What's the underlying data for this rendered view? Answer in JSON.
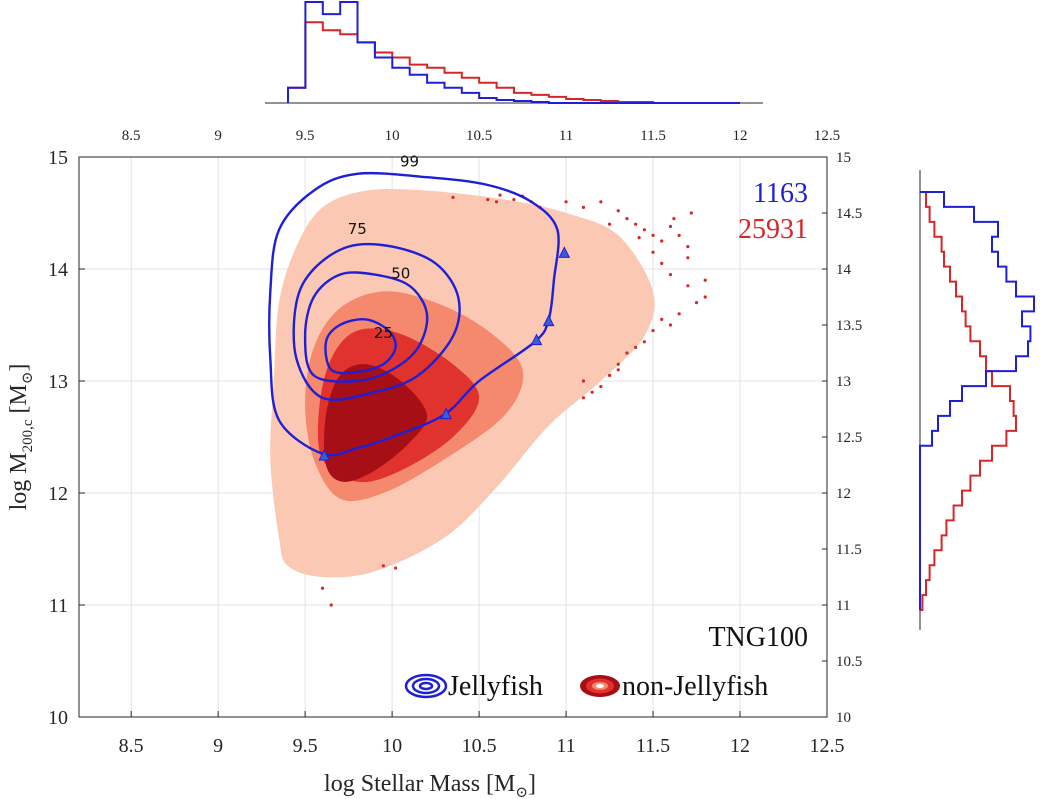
{
  "chart_data": {
    "type": "contour-scatter",
    "xlabel": "log Stellar Mass [M",
    "xlabel_sub": "⊙",
    "xlabel_end": "]",
    "ylabel": "log M",
    "ylabel_sub": "200,c",
    "ylabel_end": " [M",
    "ylabel_sub2": "⊙",
    "ylabel_end2": "]",
    "xlim": [
      8.2,
      12.5
    ],
    "ylim": [
      10,
      15
    ],
    "xticks": [
      "8.5",
      "9",
      "9.5",
      "10",
      "10.5",
      "11",
      "11.5",
      "12",
      "12.5"
    ],
    "yticks": [
      "10",
      "11",
      "12",
      "13",
      "14",
      "15"
    ],
    "right_yticks": [
      "10",
      "10.5",
      "11",
      "11.5",
      "12",
      "12.5",
      "13",
      "13.5",
      "14",
      "14.5",
      "15"
    ],
    "grid": true,
    "series": [
      {
        "name": "Jellyfish",
        "count": "1163",
        "color": "#1f1fd6",
        "contour_levels": [
          "25",
          "50",
          "75",
          "99"
        ],
        "contours": [
          {
            "level": "25",
            "points": [
              [
                9.65,
                13.1
              ],
              [
                9.62,
                13.35
              ],
              [
                9.7,
                13.5
              ],
              [
                9.85,
                13.55
              ],
              [
                9.98,
                13.45
              ],
              [
                10.02,
                13.3
              ],
              [
                9.95,
                13.15
              ],
              [
                9.8,
                13.08
              ],
              [
                9.65,
                13.1
              ]
            ],
            "label_at": [
              9.95,
              13.42
            ]
          },
          {
            "level": "50",
            "points": [
              [
                9.55,
                13.05
              ],
              [
                9.5,
                13.4
              ],
              [
                9.55,
                13.75
              ],
              [
                9.7,
                13.95
              ],
              [
                9.9,
                13.95
              ],
              [
                10.1,
                13.85
              ],
              [
                10.2,
                13.6
              ],
              [
                10.15,
                13.3
              ],
              [
                10.0,
                13.1
              ],
              [
                9.8,
                13.0
              ],
              [
                9.55,
                13.05
              ]
            ],
            "label_at": [
              10.05,
              13.95
            ]
          },
          {
            "level": "75",
            "points": [
              [
                9.6,
                12.85
              ],
              [
                9.45,
                13.2
              ],
              [
                9.45,
                13.7
              ],
              [
                9.55,
                14.0
              ],
              [
                9.75,
                14.2
              ],
              [
                10.0,
                14.2
              ],
              [
                10.25,
                14.05
              ],
              [
                10.38,
                13.75
              ],
              [
                10.35,
                13.4
              ],
              [
                10.15,
                13.05
              ],
              [
                9.9,
                12.9
              ],
              [
                9.6,
                12.85
              ]
            ],
            "label_at": [
              9.8,
              14.35
            ]
          },
          {
            "level": "99",
            "points": [
              [
                9.6,
                12.35
              ],
              [
                9.35,
                12.65
              ],
              [
                9.3,
                13.2
              ],
              [
                9.3,
                13.8
              ],
              [
                9.35,
                14.35
              ],
              [
                9.55,
                14.7
              ],
              [
                9.8,
                14.85
              ],
              [
                10.2,
                14.82
              ],
              [
                10.55,
                14.75
              ],
              [
                10.8,
                14.6
              ],
              [
                10.95,
                14.35
              ],
              [
                10.93,
                13.9
              ],
              [
                10.9,
                13.55
              ],
              [
                10.82,
                13.35
              ],
              [
                10.5,
                13.0
              ],
              [
                10.3,
                12.7
              ],
              [
                10.0,
                12.5
              ],
              [
                9.8,
                12.4
              ],
              [
                9.6,
                12.35
              ]
            ],
            "label_at": [
              10.1,
              14.95
            ]
          }
        ]
      },
      {
        "name": "non-Jellyfish",
        "count": "25931",
        "color": "#d62728",
        "fill_levels": [
          "99",
          "75",
          "50",
          "25"
        ],
        "fill_colors": [
          "#fbc8b4",
          "#f4896d",
          "#e0332d",
          "#a50f15"
        ],
        "regions": [
          {
            "level": "99",
            "points": [
              [
                9.35,
                11.6
              ],
              [
                9.3,
                12.3
              ],
              [
                9.32,
                13.0
              ],
              [
                9.35,
                13.7
              ],
              [
                9.45,
                14.2
              ],
              [
                9.6,
                14.55
              ],
              [
                9.85,
                14.7
              ],
              [
                10.2,
                14.7
              ],
              [
                10.65,
                14.62
              ],
              [
                11.0,
                14.5
              ],
              [
                11.3,
                14.3
              ],
              [
                11.5,
                13.8
              ],
              [
                11.45,
                13.4
              ],
              [
                11.2,
                13.0
              ],
              [
                10.9,
                12.6
              ],
              [
                10.6,
                12.05
              ],
              [
                10.3,
                11.6
              ],
              [
                9.9,
                11.3
              ],
              [
                9.6,
                11.25
              ],
              [
                9.4,
                11.35
              ],
              [
                9.35,
                11.6
              ]
            ]
          },
          {
            "level": "75",
            "points": [
              [
                9.55,
                12.3
              ],
              [
                9.5,
                12.8
              ],
              [
                9.55,
                13.3
              ],
              [
                9.7,
                13.65
              ],
              [
                9.95,
                13.8
              ],
              [
                10.25,
                13.7
              ],
              [
                10.55,
                13.45
              ],
              [
                10.75,
                13.1
              ],
              [
                10.65,
                12.7
              ],
              [
                10.3,
                12.3
              ],
              [
                9.95,
                12.0
              ],
              [
                9.7,
                11.95
              ],
              [
                9.55,
                12.3
              ]
            ]
          },
          {
            "level": "50",
            "points": [
              [
                9.6,
                12.3
              ],
              [
                9.58,
                12.75
              ],
              [
                9.65,
                13.2
              ],
              [
                9.8,
                13.45
              ],
              [
                10.05,
                13.42
              ],
              [
                10.35,
                13.15
              ],
              [
                10.5,
                12.85
              ],
              [
                10.35,
                12.5
              ],
              [
                10.05,
                12.2
              ],
              [
                9.8,
                12.1
              ],
              [
                9.6,
                12.3
              ]
            ]
          },
          {
            "level": "25",
            "points": [
              [
                9.62,
                12.25
              ],
              [
                9.62,
                12.7
              ],
              [
                9.7,
                13.05
              ],
              [
                9.85,
                13.15
              ],
              [
                10.05,
                13.0
              ],
              [
                10.2,
                12.7
              ],
              [
                10.1,
                12.45
              ],
              [
                9.9,
                12.2
              ],
              [
                9.72,
                12.1
              ],
              [
                9.62,
                12.25
              ]
            ]
          }
        ]
      }
    ],
    "jellyfish_markers": [
      [
        9.61,
        12.33
      ],
      [
        10.31,
        12.7
      ],
      [
        10.83,
        13.36
      ],
      [
        10.9,
        13.53
      ],
      [
        10.99,
        14.14
      ]
    ],
    "outlier_points": [
      [
        10.35,
        14.64
      ],
      [
        10.55,
        14.62
      ],
      [
        10.6,
        14.6
      ],
      [
        10.62,
        14.66
      ],
      [
        10.7,
        14.62
      ],
      [
        10.75,
        14.65
      ],
      [
        10.8,
        14.6
      ],
      [
        10.85,
        14.55
      ],
      [
        11.0,
        14.6
      ],
      [
        11.1,
        14.55
      ],
      [
        11.2,
        14.6
      ],
      [
        11.3,
        14.52
      ],
      [
        11.35,
        14.45
      ],
      [
        11.4,
        14.4
      ],
      [
        11.45,
        14.35
      ],
      [
        11.5,
        14.3
      ],
      [
        11.55,
        14.25
      ],
      [
        11.6,
        14.38
      ],
      [
        11.65,
        14.3
      ],
      [
        11.7,
        14.2
      ],
      [
        11.55,
        14.05
      ],
      [
        11.6,
        13.95
      ],
      [
        11.7,
        13.85
      ],
      [
        11.75,
        13.7
      ],
      [
        11.8,
        13.75
      ],
      [
        11.65,
        13.6
      ],
      [
        11.55,
        13.55
      ],
      [
        11.5,
        13.45
      ],
      [
        11.45,
        13.35
      ],
      [
        11.4,
        13.3
      ],
      [
        11.35,
        13.25
      ],
      [
        11.3,
        13.15
      ],
      [
        11.25,
        13.05
      ],
      [
        11.2,
        12.95
      ],
      [
        11.1,
        13.0
      ],
      [
        11.15,
        12.9
      ],
      [
        11.6,
        13.5
      ],
      [
        11.7,
        14.1
      ],
      [
        11.8,
        13.9
      ],
      [
        11.62,
        14.45
      ],
      [
        11.72,
        14.5
      ],
      [
        9.6,
        11.15
      ],
      [
        9.65,
        11.0
      ],
      [
        9.95,
        11.35
      ],
      [
        10.02,
        11.33
      ],
      [
        11.1,
        12.85
      ],
      [
        11.3,
        13.1
      ],
      [
        11.5,
        14.15
      ],
      [
        11.42,
        14.28
      ],
      [
        11.25,
        14.4
      ]
    ],
    "top_histogram": {
      "x_range": [
        9.4,
        12.0
      ],
      "bins_jellyfish": [
        0.15,
        1.0,
        0.88,
        1.0,
        0.6,
        0.45,
        0.35,
        0.28,
        0.2,
        0.15,
        0.1,
        0.05,
        0.03,
        0.02,
        0.01,
        0.0,
        0.0,
        0.0,
        0.0,
        0.0,
        0.0,
        0.0,
        0.0,
        0.0,
        0.0,
        0.0
      ],
      "bins_nonjellyfish": [
        0.15,
        0.8,
        0.72,
        0.68,
        0.6,
        0.5,
        0.45,
        0.38,
        0.35,
        0.3,
        0.25,
        0.2,
        0.15,
        0.1,
        0.08,
        0.06,
        0.04,
        0.03,
        0.02,
        0.01,
        0.01,
        0.0,
        0.0,
        0.0,
        0.0,
        0.0
      ]
    },
    "right_histogram": {
      "y_range": [
        11.0,
        14.7
      ],
      "bins_jellyfish": [
        0.0,
        0.0,
        0.0,
        0.0,
        0.0,
        0.0,
        0.0,
        0.0,
        0.0,
        0.0,
        0.0,
        0.1,
        0.15,
        0.25,
        0.35,
        0.55,
        0.8,
        0.9,
        0.92,
        0.85,
        0.95,
        0.8,
        0.72,
        0.65,
        0.6,
        0.65,
        0.45,
        0.2
      ],
      "bins_nonjellyfish": [
        0.02,
        0.05,
        0.08,
        0.12,
        0.18,
        0.22,
        0.28,
        0.35,
        0.42,
        0.5,
        0.6,
        0.72,
        0.8,
        0.78,
        0.75,
        0.6,
        0.55,
        0.5,
        0.42,
        0.38,
        0.35,
        0.3,
        0.25,
        0.2,
        0.18,
        0.12,
        0.08,
        0.05
      ]
    },
    "annotation": "TNG100",
    "legend": [
      {
        "label": "Jellyfish",
        "color": "#1f1fd6"
      },
      {
        "label": "non-Jellyfish",
        "color": "#d62728"
      }
    ]
  }
}
